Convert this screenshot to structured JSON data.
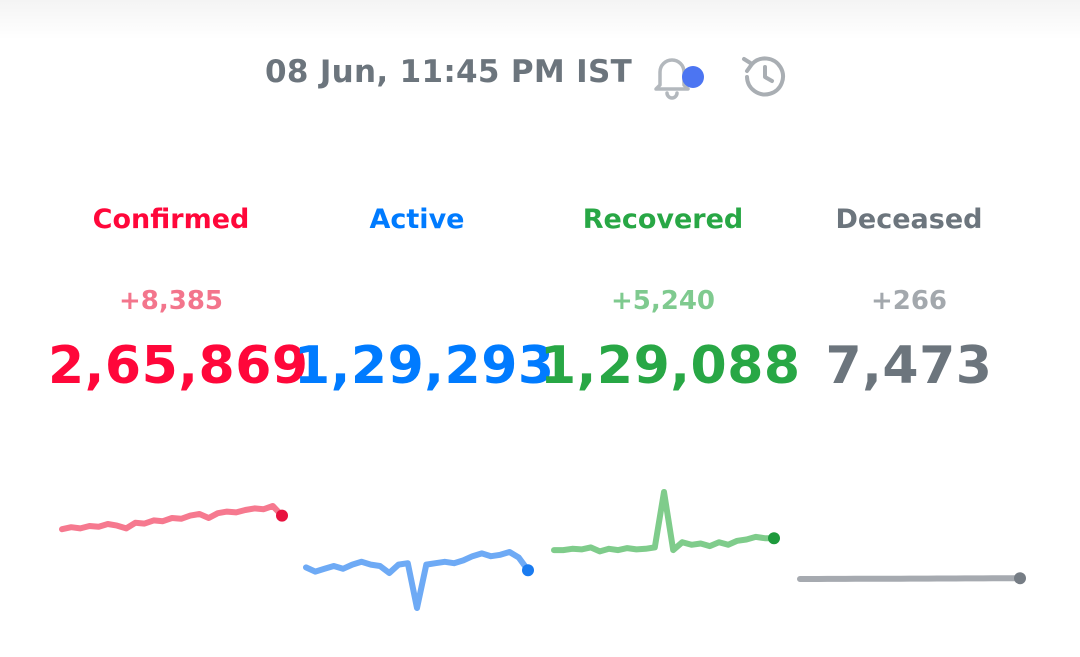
{
  "header": {
    "timestamp": "08 Jun, 11:45 PM IST",
    "bell_icon": "bell-icon",
    "history_icon": "history-icon",
    "notification_dot_color": "#4c75f2"
  },
  "stats": [
    {
      "key": "confirmed",
      "label": "Confirmed",
      "delta": "+8,385",
      "total": "2,65,869",
      "color": "#ff073a",
      "delta_color": "#f3758c",
      "spark_color": "#f6798f",
      "dot_color": "#e8123f",
      "trend": [
        0.22,
        0.27,
        0.24,
        0.3,
        0.28,
        0.35,
        0.31,
        0.24,
        0.38,
        0.36,
        0.44,
        0.42,
        0.5,
        0.48,
        0.56,
        0.6,
        0.5,
        0.62,
        0.66,
        0.64,
        0.7,
        0.74,
        0.72,
        0.8,
        0.56
      ]
    },
    {
      "key": "active",
      "label": "Active",
      "delta": "",
      "total": "1,29,293",
      "color": "#007bff",
      "delta_color": "#6aaaf9",
      "spark_color": "#6eaaf5",
      "dot_color": "#1a7bf0",
      "trend": [
        0.58,
        0.52,
        0.56,
        0.6,
        0.56,
        0.62,
        0.66,
        0.62,
        0.6,
        0.5,
        0.62,
        0.64,
        0.0,
        0.62,
        0.64,
        0.66,
        0.64,
        0.68,
        0.74,
        0.78,
        0.74,
        0.76,
        0.8,
        0.72,
        0.54
      ]
    },
    {
      "key": "recovered",
      "label": "Recovered",
      "delta": "+5,240",
      "total": "1,29,088",
      "color": "#28a745",
      "delta_color": "#7fca8f",
      "spark_color": "#7fcc8b",
      "dot_color": "#1e9a3c",
      "trend": [
        0.12,
        0.12,
        0.14,
        0.13,
        0.16,
        0.1,
        0.14,
        0.12,
        0.15,
        0.13,
        0.14,
        0.16,
        1.0,
        0.12,
        0.24,
        0.2,
        0.22,
        0.18,
        0.24,
        0.2,
        0.26,
        0.28,
        0.32,
        0.3,
        0.3
      ]
    },
    {
      "key": "deceased",
      "label": "Deceased",
      "delta": "+266",
      "total": "7,473",
      "color": "#6c757d",
      "delta_color": "#a3a8ad",
      "spark_color": "#a6aab0",
      "dot_color": "#767d85",
      "trend": [
        0.1,
        0.1,
        0.1,
        0.11,
        0.11,
        0.11,
        0.12,
        0.12,
        0.12,
        0.13,
        0.13,
        0.13,
        0.14,
        0.14,
        0.14,
        0.15,
        0.15,
        0.15,
        0.16,
        0.16,
        0.16,
        0.17,
        0.17,
        0.17,
        0.18
      ]
    }
  ]
}
